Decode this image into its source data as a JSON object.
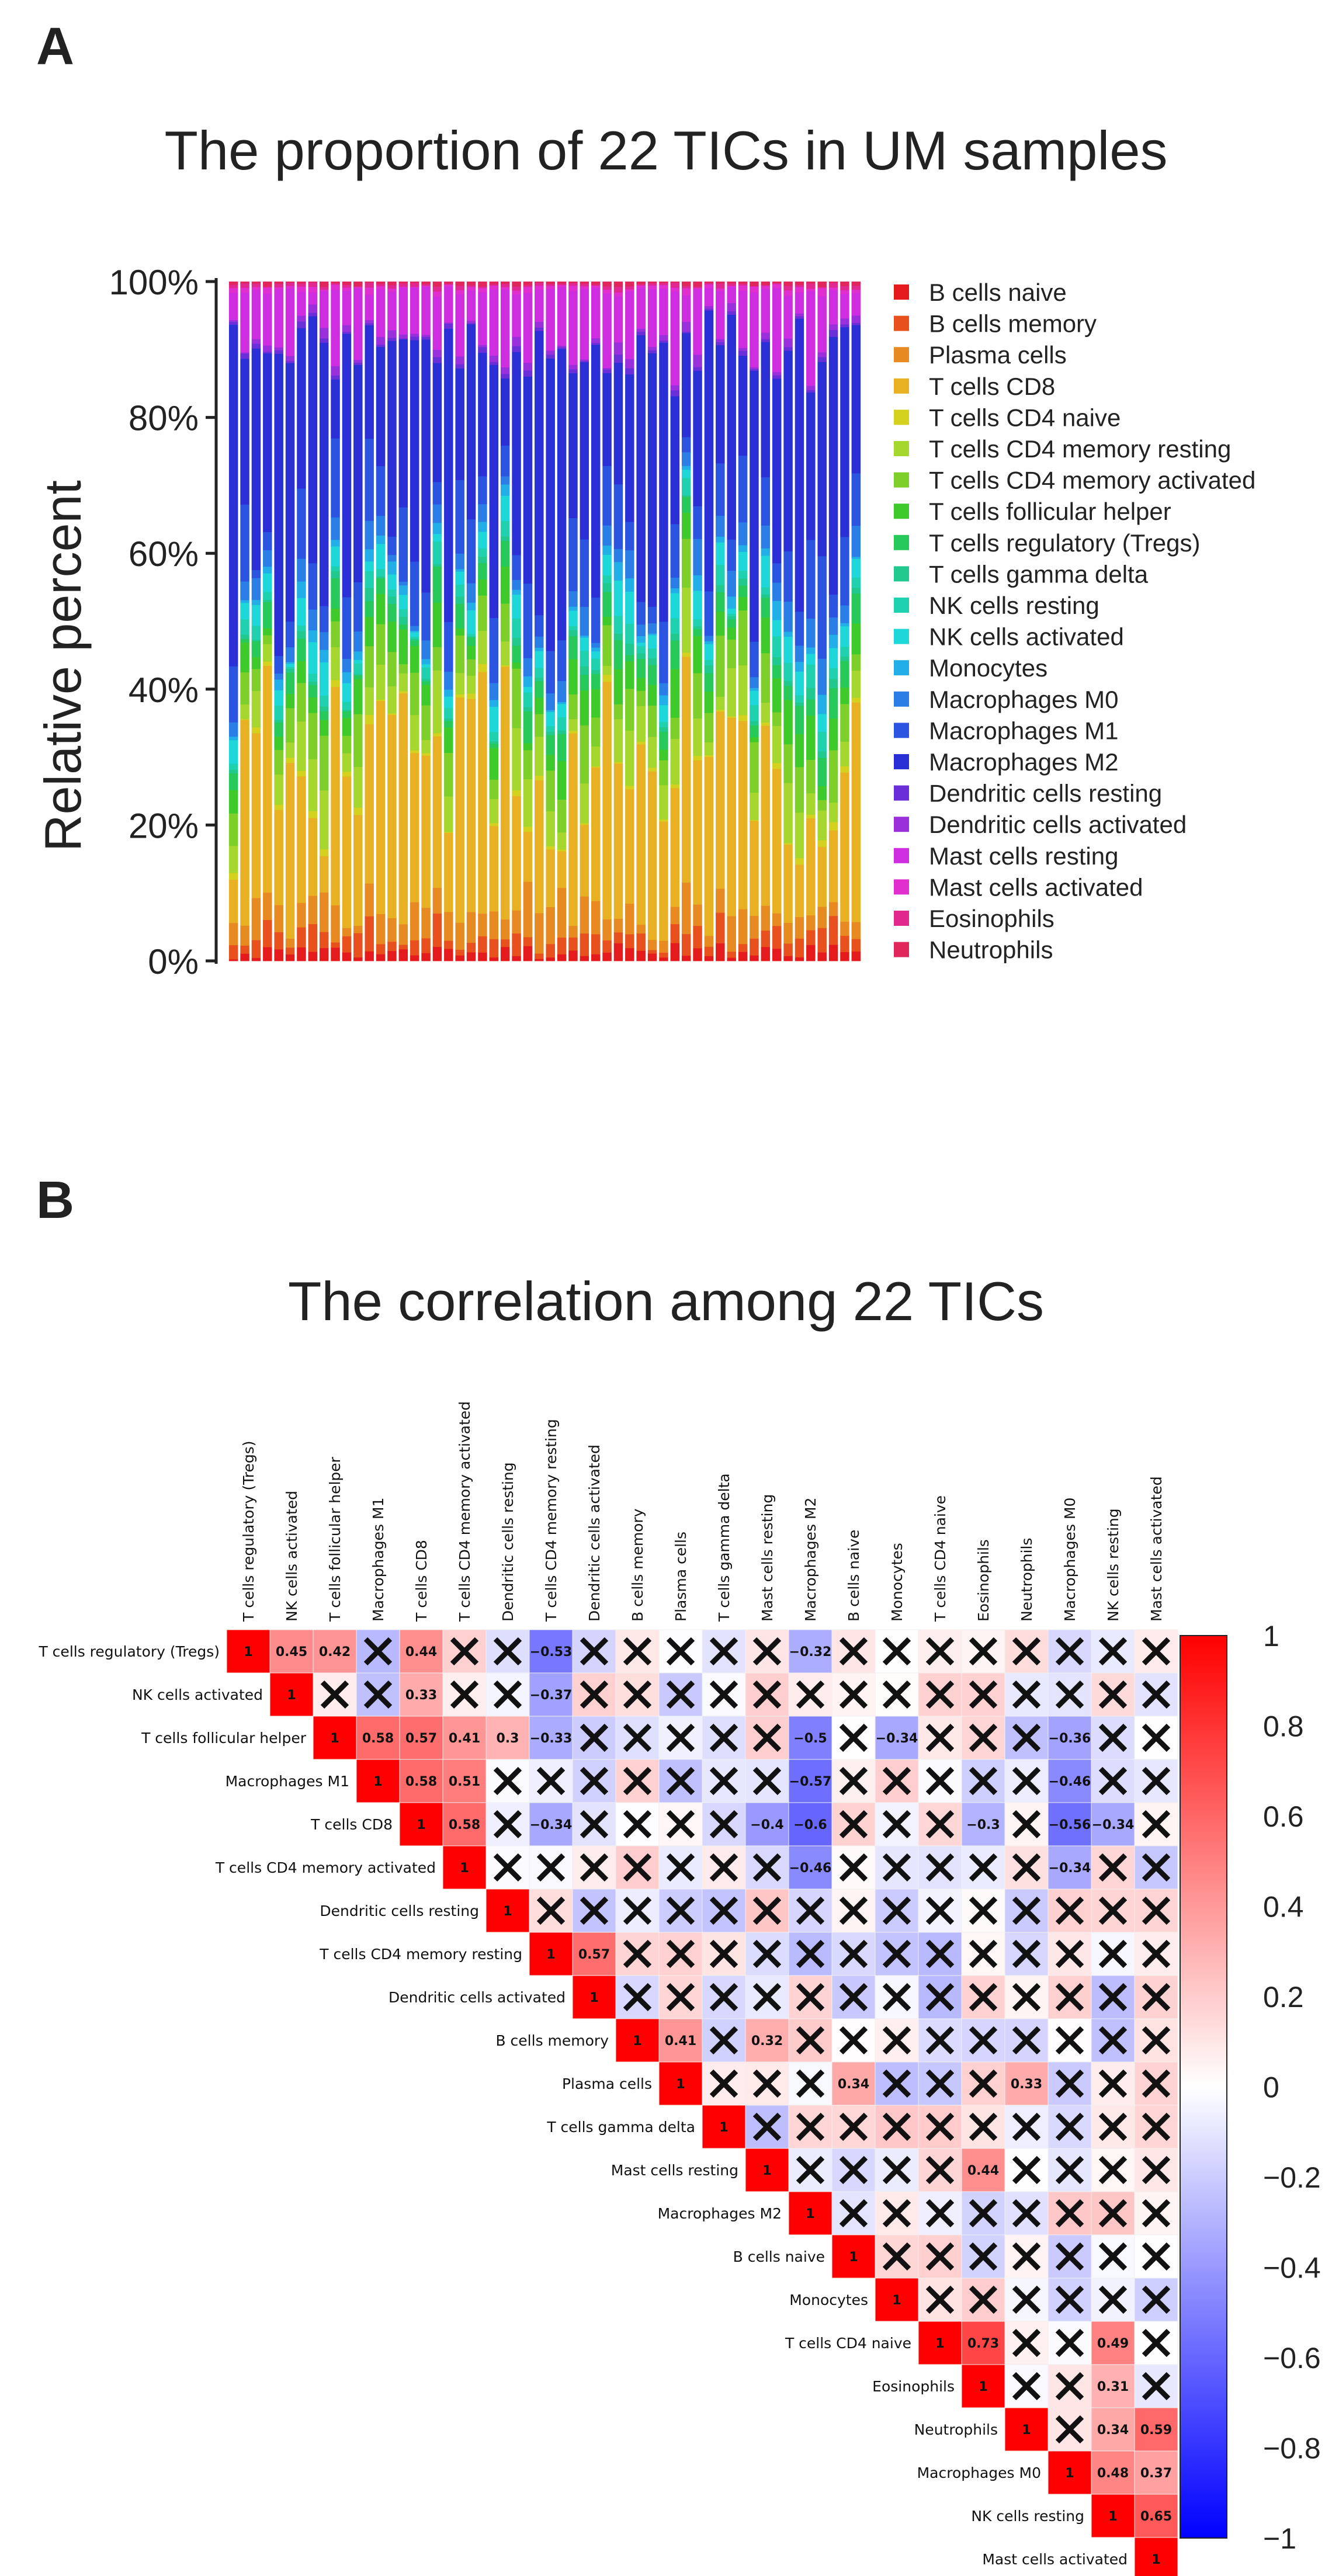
{
  "panel_a": {
    "letter": "A"
  },
  "panel_b": {
    "letter": "B"
  },
  "chart_data": [
    {
      "type": "bar",
      "stacked": true,
      "title": "The proportion of 22 TICs in UM samples",
      "xlabel": "",
      "ylabel": "Relative percent",
      "ylim": [
        0,
        100
      ],
      "y_ticks": [
        "0%",
        "20%",
        "40%",
        "60%",
        "80%",
        "100%"
      ],
      "legend_position": "right",
      "n_samples": 56,
      "series": [
        {
          "name": "B cells naive",
          "color": "#e41a1c"
        },
        {
          "name": "B cells memory",
          "color": "#e8501d"
        },
        {
          "name": "Plasma cells",
          "color": "#e88a22"
        },
        {
          "name": "T cells CD8",
          "color": "#e8b123"
        },
        {
          "name": "T cells CD4 naive",
          "color": "#d4d11f"
        },
        {
          "name": "T cells CD4 memory resting",
          "color": "#a6d72e"
        },
        {
          "name": "T cells CD4 memory activated",
          "color": "#7fcf2a"
        },
        {
          "name": "T cells follicular helper",
          "color": "#3fca2c"
        },
        {
          "name": "T cells regulatory (Tregs)",
          "color": "#26c95a"
        },
        {
          "name": "T cells gamma delta",
          "color": "#22c98f"
        },
        {
          "name": "NK cells resting",
          "color": "#20d1b0"
        },
        {
          "name": "NK cells activated",
          "color": "#1ed7d8"
        },
        {
          "name": "Monocytes",
          "color": "#22aee6"
        },
        {
          "name": "Macrophages M0",
          "color": "#2a7ee6"
        },
        {
          "name": "Macrophages M1",
          "color": "#2b54e0"
        },
        {
          "name": "Macrophages M2",
          "color": "#2a2fd6"
        },
        {
          "name": "Dendritic cells resting",
          "color": "#6a2fd8"
        },
        {
          "name": "Dendritic cells activated",
          "color": "#9a2fdc"
        },
        {
          "name": "Mast cells resting",
          "color": "#cf2ee0"
        },
        {
          "name": "Mast cells activated",
          "color": "#e02ecf"
        },
        {
          "name": "Eosinophils",
          "color": "#e0288e"
        },
        {
          "name": "Neutrophils",
          "color": "#e0265a"
        }
      ]
    },
    {
      "type": "heatmap",
      "title": "The correlation among 22 TICs",
      "labels": [
        "T cells regulatory (Tregs)",
        "NK cells activated",
        "T cells follicular helper",
        "Macrophages M1",
        "T cells CD8",
        "T cells CD4 memory activated",
        "Dendritic cells resting",
        "T cells CD4 memory resting",
        "Dendritic cells activated",
        "B cells memory",
        "Plasma cells",
        "T cells gamma delta",
        "Mast cells resting",
        "Macrophages M2",
        "B cells naive",
        "Monocytes",
        "T cells CD4 naive",
        "Eosinophils",
        "Neutrophils",
        "Macrophages M0",
        "NK cells resting",
        "Mast cells activated"
      ],
      "color_range": [
        -1,
        1
      ],
      "colorbar_ticks": [
        "1",
        "0.8",
        "0.6",
        "0.4",
        "0.2",
        "0",
        "−0.2",
        "−0.4",
        "−0.6",
        "−0.8",
        "−1"
      ],
      "significant_labels": {
        "0,1": "0.45",
        "0,2": "0.42",
        "0,4": "0.44",
        "0,7": "−0.53",
        "0,13": "−0.32",
        "1,4": "0.33",
        "1,7": "−0.37",
        "2,3": "0.58",
        "2,4": "0.57",
        "2,5": "0.41",
        "2,6": "0.3",
        "2,7": "−0.33",
        "2,13": "−0.5",
        "2,15": "−0.34",
        "2,19": "−0.36",
        "3,4": "0.58",
        "3,5": "0.51",
        "3,13": "−0.57",
        "3,19": "−0.46",
        "4,5": "0.58",
        "4,7": "−0.34",
        "4,12": "−0.4",
        "4,13": "−0.6",
        "4,17": "−0.3",
        "4,19": "−0.56",
        "4,20": "−0.34",
        "5,13": "−0.46",
        "5,19": "−0.34",
        "7,8": "0.57",
        "9,10": "0.41",
        "9,12": "0.32",
        "10,14": "0.34",
        "10,18": "0.33",
        "12,17": "0.44",
        "16,17": "0.73",
        "16,20": "0.49",
        "17,20": "0.31",
        "18,20": "0.34",
        "18,21": "0.59",
        "19,20": "0.48",
        "19,21": "0.37",
        "20,21": "0.65"
      }
    }
  ]
}
